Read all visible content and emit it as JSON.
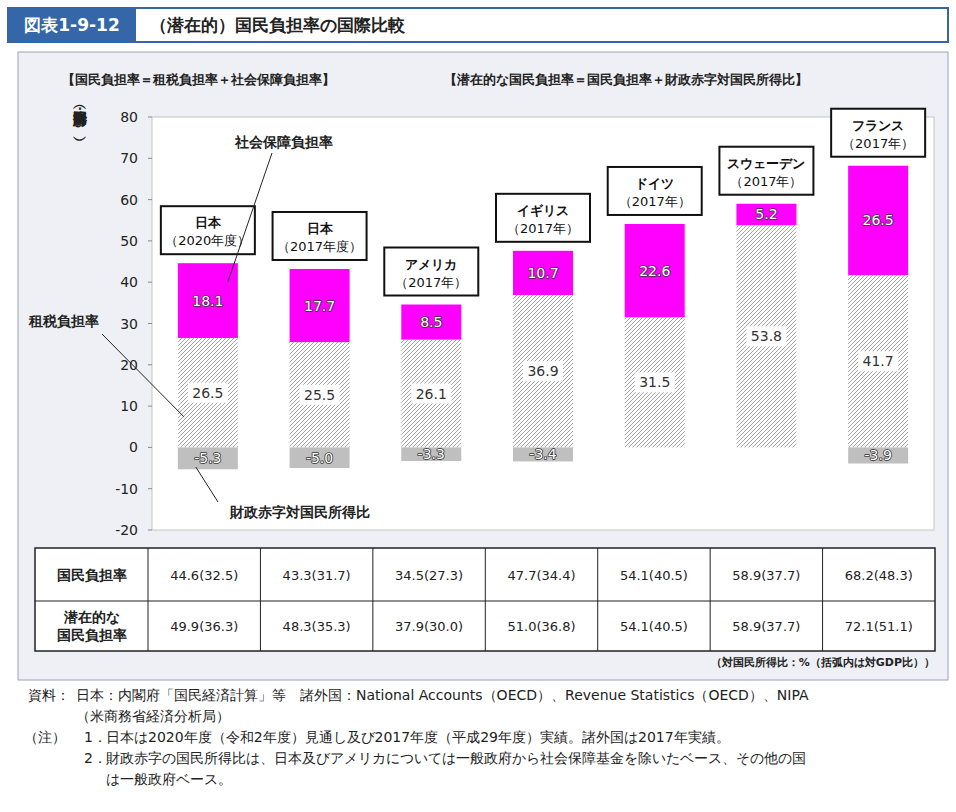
{
  "header": {
    "figure_number": "図表1-9-12",
    "title": "（潜在的）国民負担率の国際比較"
  },
  "chart_data": {
    "type": "bar",
    "stacked": true,
    "data_labels": true,
    "grid": false,
    "annotations": [
      "【国民負担率＝租税負担率＋社会保障負担率】",
      "【潜在的な国民負担率＝国民負担率＋財政赤字対国民所得比】"
    ],
    "y_label": "（対国民所得比：%）",
    "categories": [
      "日本\n（2020年度）",
      "日本\n（2017年度）",
      "アメリカ\n（2017年）",
      "イギリス\n（2017年）",
      "ドイツ\n（2017年）",
      "スウェーデン\n（2017年）",
      "フランス\n（2017年）"
    ],
    "series": [
      {
        "name": "租税負担率",
        "color": "#9a9a9a",
        "values": [
          26.5,
          25.5,
          26.1,
          36.9,
          31.5,
          53.8,
          41.7
        ]
      },
      {
        "name": "社会保障負担率",
        "color": "#ff00ff",
        "values": [
          18.1,
          17.7,
          8.5,
          10.7,
          22.6,
          5.2,
          26.5
        ]
      },
      {
        "name": "財政赤字対国民所得比",
        "color": "#bfbfbf",
        "values": [
          -5.3,
          -5.0,
          -3.3,
          -3.4,
          null,
          null,
          -3.9
        ],
        "value_labels": [
          "-5.3",
          "-5.0",
          "-3.3",
          "-3.4",
          null,
          null,
          "-3.9"
        ]
      }
    ],
    "ylim": [
      -20,
      80
    ],
    "yticks": [
      -20,
      -10,
      0,
      10,
      20,
      30,
      40,
      50,
      60,
      70,
      80
    ]
  },
  "table": {
    "rows": [
      {
        "header": "国民負担率",
        "cells": [
          "44.6(32.5)",
          "43.3(31.7)",
          "34.5(27.3)",
          "47.7(34.4)",
          "54.1(40.5)",
          "58.9(37.7)",
          "68.2(48.3)"
        ]
      },
      {
        "header": "潜在的な\n国民負担率",
        "cells": [
          "49.9(36.3)",
          "48.3(35.3)",
          "37.9(30.0)",
          "51.0(36.8)",
          "54.1(40.5)",
          "58.9(37.7)",
          "72.1(51.1)"
        ]
      }
    ],
    "unit_note": "（対国民所得比：%（括弧内は対GDP比））"
  },
  "source": {
    "label": "資料：",
    "lines": [
      "日本：内閣府「国民経済計算」等　諸外国：National Accounts（OECD）、Revenue Statistics（OECD）、NIPA",
      "（米商務省経済分析局）"
    ]
  },
  "notes": {
    "label": "（注）",
    "items": [
      {
        "num": "1．",
        "lines": [
          "日本は2020年度（令和2年度）見通し及び2017年度（平成29年度）実績。諸外国は2017年実績。"
        ]
      },
      {
        "num": "2．",
        "lines": [
          "財政赤字の国民所得比は、日本及びアメリカについては一般政府から社会保障基金を除いたベース、その他の国",
          "は一般政府ベース。"
        ]
      }
    ]
  }
}
